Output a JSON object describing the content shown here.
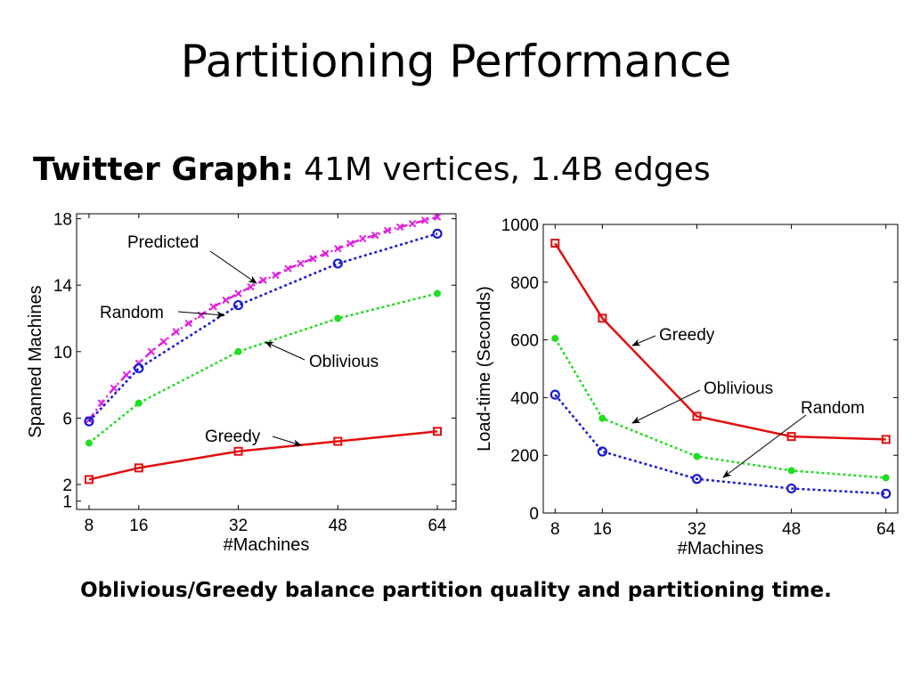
{
  "slide": {
    "title": "Partitioning Performance",
    "subtitle_bold": "Twitter Graph:",
    "subtitle_rest": " 41M vertices, 1.4B edges",
    "caption": "Oblivious/Greedy balance partition quality and partitioning time."
  },
  "chart_data": [
    {
      "type": "line",
      "xlabel": "#Machines",
      "ylabel": "Spanned Machines",
      "xlim": [
        6,
        67
      ],
      "ylim": [
        0.5,
        18.3
      ],
      "x_ticks": [
        8,
        16,
        32,
        48,
        64
      ],
      "y_ticks": [
        1,
        2,
        6,
        10,
        14,
        18
      ],
      "grid": false,
      "series": [
        {
          "name": "Predicted",
          "color": "#e020e0",
          "marker": "x",
          "dash": "dashdot",
          "x": [
            8,
            10,
            12,
            14,
            16,
            18,
            20,
            22,
            24,
            26,
            28,
            30,
            32,
            34,
            36,
            38,
            40,
            42,
            44,
            46,
            48,
            50,
            52,
            54,
            56,
            58,
            60,
            62,
            64
          ],
          "y": [
            5.9,
            6.9,
            7.8,
            8.6,
            9.3,
            10.0,
            10.6,
            11.2,
            11.7,
            12.2,
            12.7,
            13.1,
            13.5,
            13.9,
            14.3,
            14.6,
            15.0,
            15.3,
            15.6,
            15.9,
            16.2,
            16.5,
            16.8,
            17.0,
            17.3,
            17.5,
            17.7,
            17.9,
            18.1
          ]
        },
        {
          "name": "Random",
          "color": "#1a1ad0",
          "marker": "o",
          "dash": "dot",
          "x": [
            8,
            16,
            32,
            48,
            64
          ],
          "y": [
            5.8,
            9.0,
            12.8,
            15.3,
            17.1
          ]
        },
        {
          "name": "Oblivious",
          "color": "#22dd22",
          "marker": "dot",
          "dash": "dot",
          "x": [
            8,
            16,
            32,
            48,
            64
          ],
          "y": [
            4.5,
            6.9,
            10.0,
            12.0,
            13.5
          ]
        },
        {
          "name": "Greedy",
          "color": "#e01010",
          "marker": "square",
          "dash": "solid",
          "x": [
            8,
            16,
            32,
            48,
            64
          ],
          "y": [
            2.3,
            3.0,
            4.0,
            4.6,
            5.2
          ]
        }
      ],
      "annotations": [
        {
          "text": "Predicted",
          "series": "Predicted"
        },
        {
          "text": "Random",
          "series": "Random"
        },
        {
          "text": "Oblivious",
          "series": "Oblivious"
        },
        {
          "text": "Greedy",
          "series": "Greedy"
        }
      ]
    },
    {
      "type": "line",
      "xlabel": "#Machines",
      "ylabel": "Load-time (Seconds)",
      "xlim": [
        6,
        66
      ],
      "ylim": [
        0,
        1000
      ],
      "x_ticks": [
        8,
        16,
        32,
        48,
        64
      ],
      "y_ticks": [
        0,
        200,
        400,
        600,
        800,
        1000
      ],
      "grid": false,
      "series": [
        {
          "name": "Greedy",
          "color": "#e01010",
          "marker": "square",
          "dash": "solid",
          "x": [
            8,
            16,
            32,
            48,
            64
          ],
          "y": [
            935,
            675,
            335,
            265,
            255
          ]
        },
        {
          "name": "Oblivious",
          "color": "#22dd22",
          "marker": "dot",
          "dash": "dot",
          "x": [
            8,
            16,
            32,
            48,
            64
          ],
          "y": [
            605,
            328,
            196,
            147,
            122
          ]
        },
        {
          "name": "Random",
          "color": "#1a1ad0",
          "marker": "o",
          "dash": "dot",
          "x": [
            8,
            16,
            32,
            48,
            64
          ],
          "y": [
            410,
            213,
            118,
            85,
            67
          ]
        }
      ],
      "annotations": [
        {
          "text": "Greedy",
          "series": "Greedy"
        },
        {
          "text": "Oblivious",
          "series": "Oblivious"
        },
        {
          "text": "Random",
          "series": "Random"
        }
      ]
    }
  ]
}
